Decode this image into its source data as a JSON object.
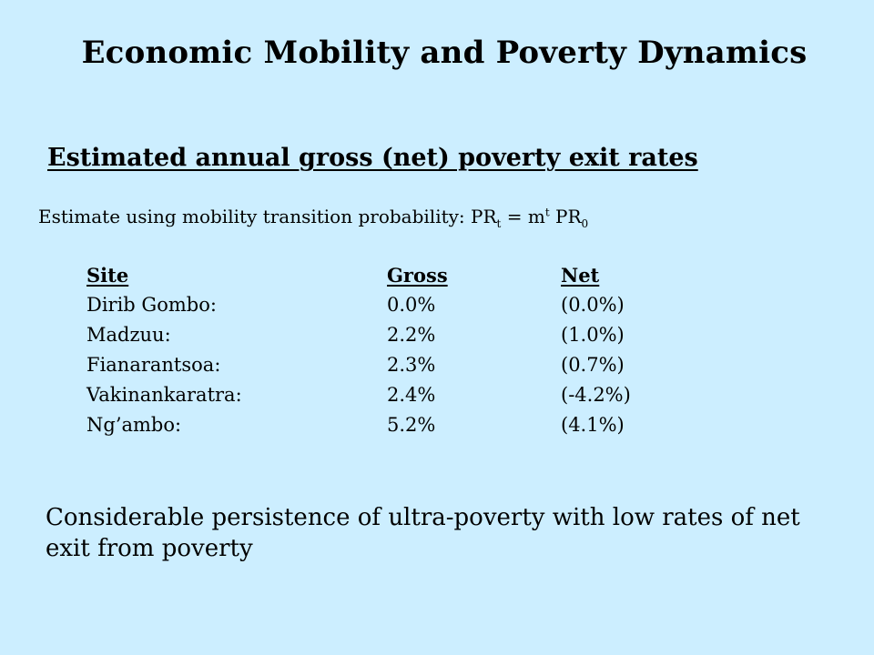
{
  "slide": {
    "title": "Economic Mobility and Poverty Dynamics",
    "subtitle": "Estimated annual gross (net) poverty exit rates",
    "formula": {
      "prefix": "Estimate using mobility transition probability: PR",
      "sub_t": "t",
      "equals": " = m",
      "sup_t": "t",
      "pr0": " PR",
      "sub_0": "0"
    },
    "table": {
      "headers": {
        "site": "Site",
        "gross": "Gross",
        "net": "Net"
      },
      "rows": [
        {
          "site": "Dirib Gombo:",
          "gross": "0.0%",
          "net": "(0.0%)"
        },
        {
          "site": "Madzuu:",
          "gross": "2.2%",
          "net": "(1.0%)"
        },
        {
          "site": "Fianarantsoa:",
          "gross": "2.3%",
          "net": "(0.7%)"
        },
        {
          "site": "Vakinankaratra:",
          "gross": "2.4%",
          "net": "(-4.2%)"
        },
        {
          "site": "Ng’ambo:",
          "gross": "5.2%",
          "net": "(4.1%)"
        }
      ]
    },
    "conclusion": "Considerable persistence of ultra-poverty with low rates of net exit from poverty"
  },
  "colors": {
    "background": "#cceeff",
    "text": "#000000"
  }
}
